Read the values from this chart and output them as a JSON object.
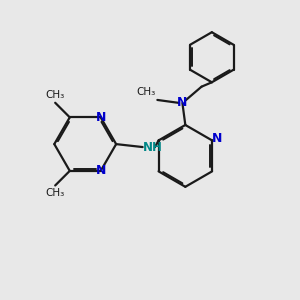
{
  "bg_color": "#e8e8e8",
  "bond_color": "#1a1a1a",
  "N_color": "#0000cc",
  "NH_color": "#008888",
  "text_color": "#1a1a1a",
  "bond_width": 1.6,
  "figsize": [
    3.0,
    3.0
  ],
  "dpi": 100,
  "xlim": [
    0,
    10
  ],
  "ylim": [
    0,
    10
  ]
}
